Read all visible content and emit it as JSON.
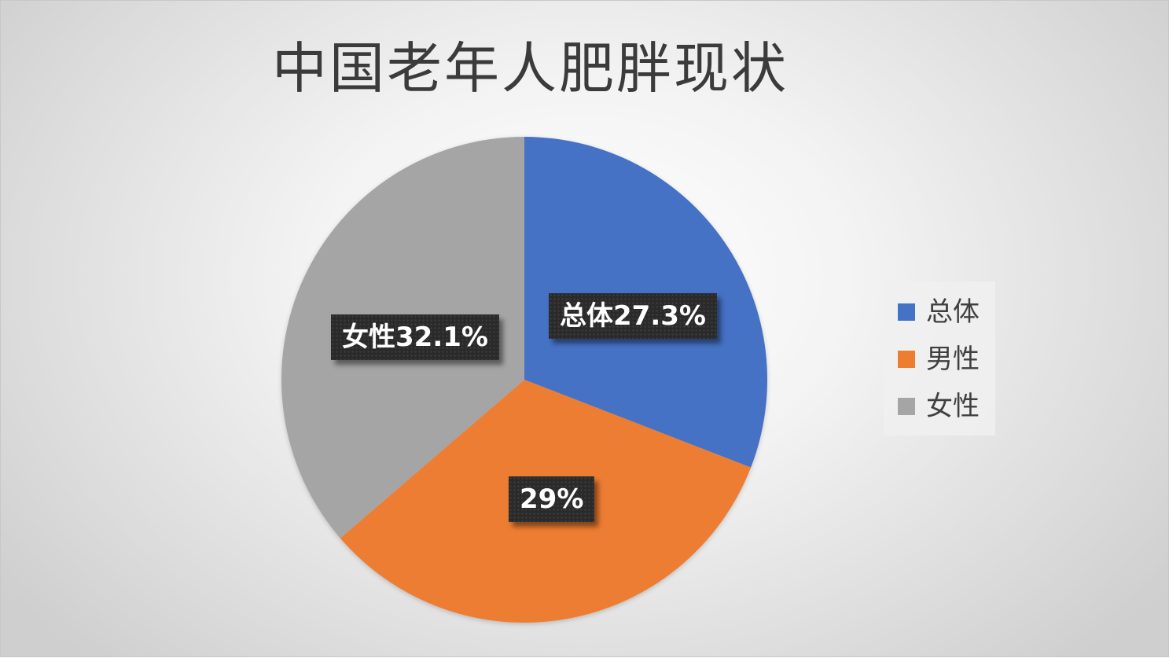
{
  "chart_data": {
    "type": "pie",
    "title": "中国老年人肥胖现状",
    "categories": [
      "总体",
      "男性",
      "女性"
    ],
    "values": [
      27.3,
      29,
      32.1
    ],
    "data_labels": [
      "总体27.3%",
      "29%",
      "女性32.1%"
    ],
    "colors": [
      "#4472C4",
      "#ED7D31",
      "#A5A5A5"
    ],
    "legend_position": "right"
  }
}
